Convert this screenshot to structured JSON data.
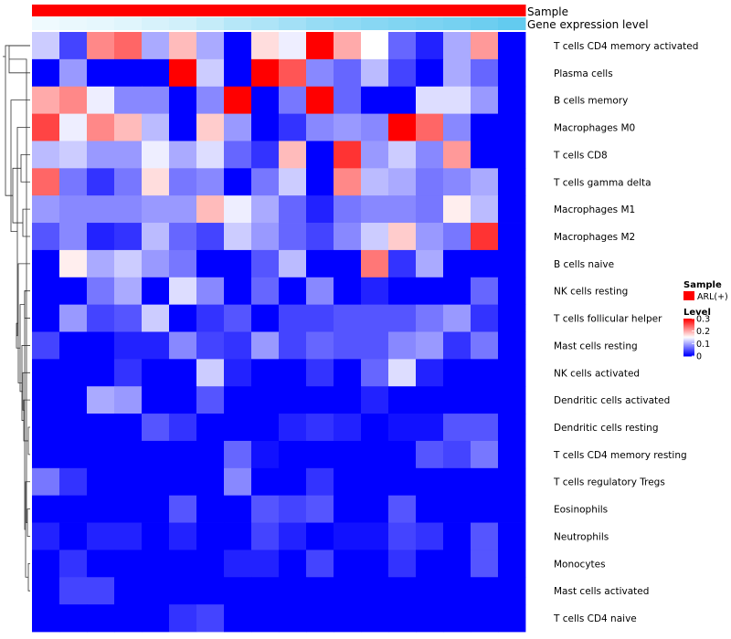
{
  "chart_data": {
    "type": "heatmap",
    "title": "",
    "annotations": {
      "sample_label": "Sample",
      "sample_color": "#ff0000",
      "expression_label": "Gene expression level",
      "expression_low_color": "#f2fbfe",
      "expression_high_color": "#5bc8ee"
    },
    "legend": {
      "sample_title": "Sample",
      "sample_entry": "ARL(+)",
      "level_title": "Level",
      "level_ticks": [
        0.3,
        0.2,
        0.1,
        0
      ],
      "level_range": [
        0,
        0.3
      ],
      "colors": {
        "low": "#0000ff",
        "mid": "#ffffff",
        "high": "#ff0000"
      }
    },
    "rows": [
      "T cells CD4 memory activated",
      "Plasma cells",
      "B cells memory",
      "Macrophages M0",
      "T cells CD8",
      "T cells gamma delta",
      "Macrophages M1",
      "Macrophages M2",
      "B cells naive",
      "NK cells resting",
      "T cells follicular helper",
      "Mast cells resting",
      "NK cells activated",
      "Dendritic cells activated",
      "Dendritic cells resting",
      "T cells CD4 memory resting",
      "T cells regulatory  Tregs",
      "Eosinophils",
      "Neutrophils",
      "Monocytes",
      "Mast cells activated",
      "T cells CD4 naive"
    ],
    "n_columns": 18,
    "values": [
      [
        0.12,
        0.04,
        0.22,
        0.24,
        0.1,
        0.19,
        0.1,
        0.0,
        0.17,
        0.14,
        0.3,
        0.2,
        0.15,
        0.06,
        0.02,
        0.1,
        0.21,
        0.0
      ],
      [
        0.0,
        0.09,
        0.0,
        0.0,
        0.0,
        0.3,
        0.12,
        0.0,
        0.3,
        0.25,
        0.08,
        0.06,
        0.11,
        0.04,
        0.0,
        0.1,
        0.06,
        0.0
      ],
      [
        0.2,
        0.22,
        0.14,
        0.08,
        0.08,
        0.0,
        0.08,
        0.3,
        0.0,
        0.07,
        0.3,
        0.06,
        0.0,
        0.0,
        0.13,
        0.13,
        0.09,
        0.0
      ],
      [
        0.26,
        0.14,
        0.22,
        0.19,
        0.11,
        0.0,
        0.18,
        0.09,
        0.0,
        0.03,
        0.08,
        0.09,
        0.08,
        0.3,
        0.24,
        0.08,
        0.0,
        0.0
      ],
      [
        0.11,
        0.12,
        0.09,
        0.09,
        0.14,
        0.1,
        0.13,
        0.06,
        0.03,
        0.19,
        0.0,
        0.27,
        0.09,
        0.12,
        0.08,
        0.21,
        0.0,
        0.0
      ],
      [
        0.24,
        0.07,
        0.03,
        0.07,
        0.17,
        0.07,
        0.08,
        0.0,
        0.07,
        0.12,
        0.0,
        0.22,
        0.11,
        0.1,
        0.07,
        0.08,
        0.1,
        0.0
      ],
      [
        0.09,
        0.08,
        0.08,
        0.08,
        0.09,
        0.09,
        0.19,
        0.14,
        0.1,
        0.06,
        0.02,
        0.07,
        0.08,
        0.08,
        0.07,
        0.16,
        0.11,
        0.0
      ],
      [
        0.05,
        0.08,
        0.02,
        0.03,
        0.11,
        0.06,
        0.04,
        0.12,
        0.09,
        0.06,
        0.04,
        0.08,
        0.12,
        0.18,
        0.09,
        0.07,
        0.27,
        0.0
      ],
      [
        0.0,
        0.16,
        0.1,
        0.12,
        0.09,
        0.07,
        0.0,
        0.0,
        0.05,
        0.11,
        0.0,
        0.0,
        0.23,
        0.03,
        0.1,
        0.0,
        0.0,
        0.0
      ],
      [
        0.0,
        0.0,
        0.07,
        0.1,
        0.0,
        0.13,
        0.08,
        0.0,
        0.06,
        0.0,
        0.08,
        0.0,
        0.02,
        0.0,
        0.0,
        0.0,
        0.06,
        0.0
      ],
      [
        0.0,
        0.09,
        0.04,
        0.05,
        0.12,
        0.0,
        0.03,
        0.05,
        0.0,
        0.04,
        0.04,
        0.05,
        0.05,
        0.05,
        0.07,
        0.09,
        0.03,
        0.0
      ],
      [
        0.04,
        0.0,
        0.0,
        0.02,
        0.02,
        0.08,
        0.04,
        0.03,
        0.09,
        0.04,
        0.06,
        0.05,
        0.05,
        0.08,
        0.09,
        0.03,
        0.07,
        0.0
      ],
      [
        0.0,
        0.0,
        0.0,
        0.03,
        0.0,
        0.0,
        0.12,
        0.02,
        0.0,
        0.0,
        0.03,
        0.0,
        0.06,
        0.13,
        0.02,
        0.0,
        0.0,
        0.0
      ],
      [
        0.0,
        0.0,
        0.1,
        0.09,
        0.0,
        0.0,
        0.05,
        0.0,
        0.0,
        0.0,
        0.0,
        0.0,
        0.02,
        0.0,
        0.0,
        0.0,
        0.0,
        0.0
      ],
      [
        0.0,
        0.0,
        0.0,
        0.0,
        0.05,
        0.03,
        0.0,
        0.0,
        0.0,
        0.02,
        0.03,
        0.02,
        0.0,
        0.01,
        0.01,
        0.05,
        0.05,
        0.0
      ],
      [
        0.0,
        0.0,
        0.0,
        0.0,
        0.0,
        0.0,
        0.0,
        0.06,
        0.01,
        0.0,
        0.0,
        0.0,
        0.0,
        0.0,
        0.05,
        0.04,
        0.07,
        0.0
      ],
      [
        0.07,
        0.03,
        0.0,
        0.0,
        0.0,
        0.0,
        0.0,
        0.08,
        0.0,
        0.0,
        0.03,
        0.0,
        0.0,
        0.0,
        0.0,
        0.0,
        0.0,
        0.0
      ],
      [
        0.0,
        0.0,
        0.0,
        0.0,
        0.0,
        0.05,
        0.0,
        0.0,
        0.05,
        0.04,
        0.05,
        0.0,
        0.0,
        0.05,
        0.0,
        0.0,
        0.0,
        0.0
      ],
      [
        0.02,
        0.0,
        0.02,
        0.02,
        0.0,
        0.02,
        0.0,
        0.0,
        0.04,
        0.02,
        0.0,
        0.01,
        0.01,
        0.04,
        0.03,
        0.0,
        0.05,
        0.0
      ],
      [
        0.0,
        0.03,
        0.0,
        0.0,
        0.0,
        0.0,
        0.0,
        0.02,
        0.02,
        0.0,
        0.04,
        0.0,
        0.0,
        0.03,
        0.0,
        0.0,
        0.05,
        0.0
      ],
      [
        0.0,
        0.04,
        0.04,
        0.0,
        0.0,
        0.0,
        0.0,
        0.0,
        0.0,
        0.0,
        0.0,
        0.0,
        0.0,
        0.0,
        0.0,
        0.0,
        0.0,
        0.0
      ],
      [
        0.0,
        0.0,
        0.0,
        0.0,
        0.0,
        0.03,
        0.04,
        0.0,
        0.0,
        0.0,
        0.0,
        0.0,
        0.0,
        0.0,
        0.0,
        0.0,
        0.0,
        0.0
      ]
    ],
    "expression_level": [
      0.02,
      0.05,
      0.08,
      0.12,
      0.18,
      0.22,
      0.3,
      0.4,
      0.45,
      0.52,
      0.6,
      0.65,
      0.7,
      0.75,
      0.78,
      0.82,
      0.88,
      0.95
    ],
    "dendrogram_order_note": "rows clustered hierarchically"
  }
}
